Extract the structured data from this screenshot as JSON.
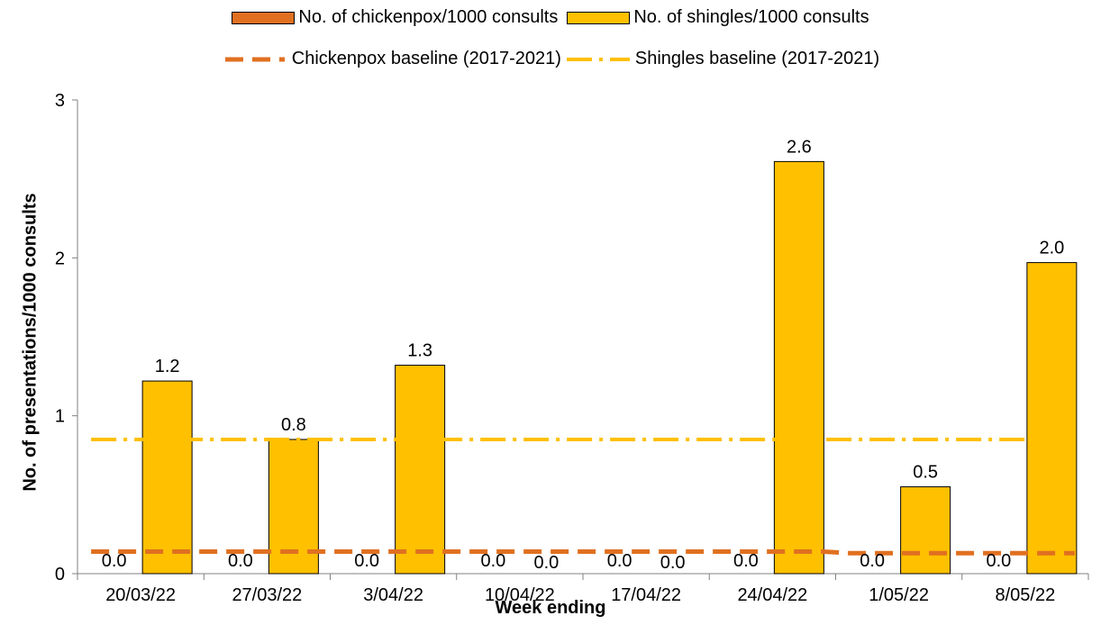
{
  "chart_data": {
    "type": "bar",
    "categories": [
      "20/03/22",
      "27/03/22",
      "3/04/22",
      "10/04/22",
      "17/04/22",
      "24/04/22",
      "1/05/22",
      "8/05/22"
    ],
    "series": [
      {
        "name": "No. of chickenpox/1000 consults",
        "kind": "bar",
        "color": "#e07020",
        "values": [
          0.0,
          0.0,
          0.0,
          0.0,
          0.0,
          0.0,
          0.0,
          0.0
        ],
        "labels": [
          "0.0",
          "0.0",
          "0.0",
          "0.0",
          "0.0",
          "0.0",
          "0.0",
          "0.0"
        ]
      },
      {
        "name": "No. of shingles/1000 consults",
        "kind": "bar",
        "color": "#ffc000",
        "values": [
          1.22,
          0.85,
          1.32,
          0.0,
          0.0,
          2.61,
          0.55,
          1.97
        ],
        "labels": [
          "1.2",
          "0.8",
          "1.3",
          "0.0",
          "0.0",
          "2.6",
          "0.5",
          "2.0"
        ]
      },
      {
        "name": "Chickenpox baseline (2017-2021)",
        "kind": "line",
        "style": "dashed",
        "color": "#e07020",
        "values": [
          0.14,
          0.14,
          0.14,
          0.14,
          0.14,
          0.14,
          0.13,
          0.13
        ]
      },
      {
        "name": "Shingles baseline (2017-2021)",
        "kind": "line",
        "style": "dash-dot",
        "color": "#ffc000",
        "values": [
          0.85,
          0.85,
          0.85,
          0.85,
          0.85,
          0.85,
          0.85,
          0.85
        ]
      }
    ],
    "xlabel": "Week ending",
    "ylabel": "No. of presentations/1000 consults",
    "ylim": [
      0,
      3
    ],
    "yticks": [
      "0",
      "1",
      "2",
      "3"
    ],
    "grid": false,
    "legend_position": "top"
  }
}
